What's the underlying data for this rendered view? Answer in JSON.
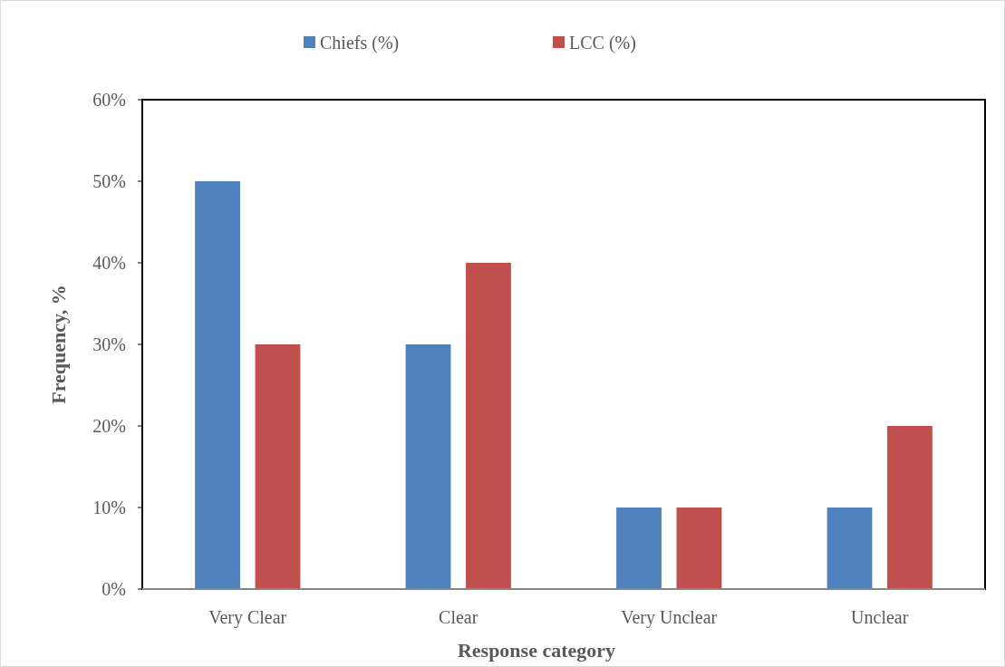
{
  "chart_data": {
    "type": "bar",
    "xlabel": "Response category",
    "ylabel": "Frequency, %",
    "categories": [
      "Very Clear",
      "Clear",
      "Very Unclear",
      "Unclear"
    ],
    "series": [
      {
        "name": "Chiefs (%)",
        "color": "#4f81bd",
        "values": [
          50,
          30,
          10,
          10
        ]
      },
      {
        "name": "LCC (%)",
        "color": "#c0504d",
        "values": [
          30,
          40,
          10,
          20
        ]
      }
    ],
    "ylim": [
      0,
      60
    ],
    "yticks": [
      {
        "value": 0,
        "label": "0%"
      },
      {
        "value": 10,
        "label": "10%"
      },
      {
        "value": 20,
        "label": "20%"
      },
      {
        "value": 30,
        "label": "30%"
      },
      {
        "value": 40,
        "label": "40%"
      },
      {
        "value": 50,
        "label": "50%"
      },
      {
        "value": 60,
        "label": "60%"
      }
    ],
    "legend": "top",
    "grid": false
  }
}
